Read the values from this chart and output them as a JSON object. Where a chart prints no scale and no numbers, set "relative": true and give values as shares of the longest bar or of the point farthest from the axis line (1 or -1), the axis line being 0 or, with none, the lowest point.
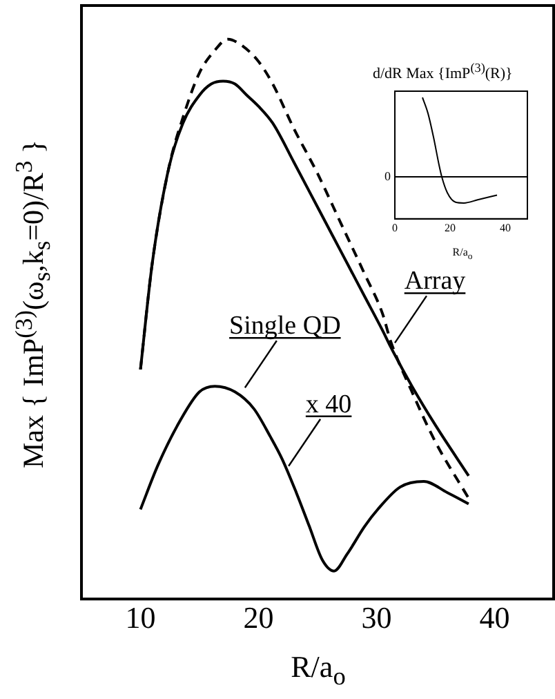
{
  "chart_data": [
    {
      "type": "line",
      "xlabel": "R/a$_{o}$",
      "ylabel": "Max { ImP$^{(3)}$(ω$_{s}$,k$_{s}$=0)/R$^{3}$ }",
      "relative": true,
      "xlim": [
        5,
        45
      ],
      "xticks": [
        10,
        20,
        30,
        40
      ],
      "tick_labels": "x",
      "legend": false,
      "marker": "none",
      "grid": false,
      "series": [
        {
          "color": "#000000",
          "line_style": "dashed",
          "x": [
            10,
            11,
            12.4,
            13.6,
            15,
            16.3,
            17.4,
            18.5,
            20,
            21.2,
            23,
            25,
            27,
            29,
            30.5,
            31.2,
            33,
            35,
            37.8
          ],
          "values": [
            0.41,
            0.6,
            0.77,
            0.86,
            0.94,
            0.98,
            1,
            0.99,
            0.96,
            0.92,
            0.84,
            0.76,
            0.67,
            0.58,
            0.51,
            0.46,
            0.37,
            0.28,
            0.18
          ]
        },
        {
          "color": "#000000",
          "line_style": "solid",
          "x": [
            10,
            11,
            12.4,
            13.6,
            15,
            16,
            17,
            18,
            19,
            20,
            21.2,
            23,
            25,
            27,
            29,
            30.5,
            31.2,
            33,
            35,
            37.8
          ],
          "values": [
            0.41,
            0.6,
            0.77,
            0.85,
            0.9,
            0.92,
            0.925,
            0.92,
            0.9,
            0.88,
            0.85,
            0.78,
            0.7,
            0.62,
            0.54,
            0.48,
            0.45,
            0.38,
            0.31,
            0.22
          ]
        },
        {
          "color": "#000000",
          "line_style": "solid",
          "x": [
            10,
            11.5,
            13.4,
            15,
            16.3,
            18,
            19.6,
            21,
            22,
            23.2,
            24.3,
            25.4,
            26.4,
            27.5,
            29,
            30.1,
            32,
            34,
            36,
            37.8
          ],
          "values": [
            0.16,
            0.24,
            0.32,
            0.37,
            0.38,
            0.37,
            0.34,
            0.29,
            0.25,
            0.19,
            0.13,
            0.07,
            0.05,
            0.08,
            0.13,
            0.16,
            0.2,
            0.21,
            0.19,
            0.17
          ]
        }
      ],
      "annotations": [
        {
          "text": "Single QD",
          "x": 18.5,
          "y": 0.37
        },
        {
          "text": "x 40",
          "x": 22.2,
          "y": 0.23
        },
        {
          "text": "Array",
          "x": 31.2,
          "y": 0.45
        }
      ]
    },
    {
      "type": "line",
      "title": "d/dR Max {ImP$^{(3)}$(R)}",
      "xlabel": "R/a$_{o}$",
      "relative": true,
      "xlim": [
        0,
        48
      ],
      "xticks": [
        0,
        20,
        40
      ],
      "tick_labels": "x",
      "legend": false,
      "marker": "none",
      "grid": false,
      "ref_lines": [
        {
          "axis": "y",
          "value": 0,
          "label": "0"
        }
      ],
      "series": [
        {
          "color": "#000000",
          "line_style": "solid",
          "x": [
            10,
            12,
            14,
            16,
            17,
            19,
            22,
            25,
            30,
            37
          ],
          "values": [
            1,
            0.8,
            0.5,
            0.15,
            0,
            -0.2,
            -0.32,
            -0.33,
            -0.29,
            -0.23
          ]
        }
      ]
    }
  ]
}
